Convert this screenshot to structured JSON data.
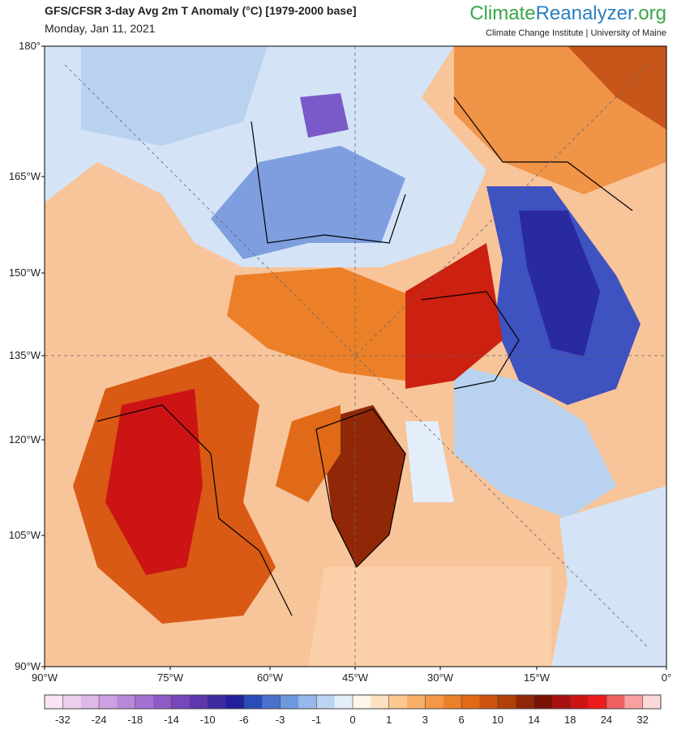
{
  "header": {
    "title": "GFS/CFSR 3-day Avg 2m T Anomaly (°C) [1979-2000 base]",
    "date": "Monday, Jan 11, 2021",
    "brand": {
      "parts": [
        "Climate",
        "Reanalyzer",
        ".org"
      ],
      "colors": [
        "#3aa64a",
        "#2a7fc0",
        "#3aa64a"
      ]
    },
    "affiliation": "Climate Change Institute | University of Maine"
  },
  "map": {
    "left_labels": [
      "180°",
      "165°W",
      "150°W",
      "135°W",
      "120°W",
      "105°W",
      "90°W"
    ],
    "bottom_labels": [
      "90°W",
      "75°W",
      "60°W",
      "45°W",
      "30°W",
      "15°W",
      "0°"
    ]
  },
  "colorbar": {
    "labels": [
      -32,
      -24,
      -18,
      -14,
      -10,
      -6,
      -3,
      -1,
      0,
      1,
      3,
      6,
      10,
      14,
      18,
      24,
      32
    ],
    "colors": [
      "#f8e4f4",
      "#ecd0ee",
      "#ddb8e8",
      "#cca0e2",
      "#b888da",
      "#a470d2",
      "#8e5ac6",
      "#7646ba",
      "#5e36ae",
      "#3c2aa0",
      "#22209a",
      "#2a4cb8",
      "#4a72cc",
      "#6e98dc",
      "#96b8ea",
      "#bcd4f4",
      "#e4eefa",
      "#fff4e8",
      "#fde0c0",
      "#fbc890",
      "#f8ae68",
      "#f49848",
      "#ec8028",
      "#e06a18",
      "#cc5410",
      "#b04008",
      "#902808",
      "#7a1206",
      "#a81010",
      "#cc1414",
      "#ec1c1c",
      "#f06060",
      "#f8a0a0",
      "#fcd8d8"
    ]
  }
}
